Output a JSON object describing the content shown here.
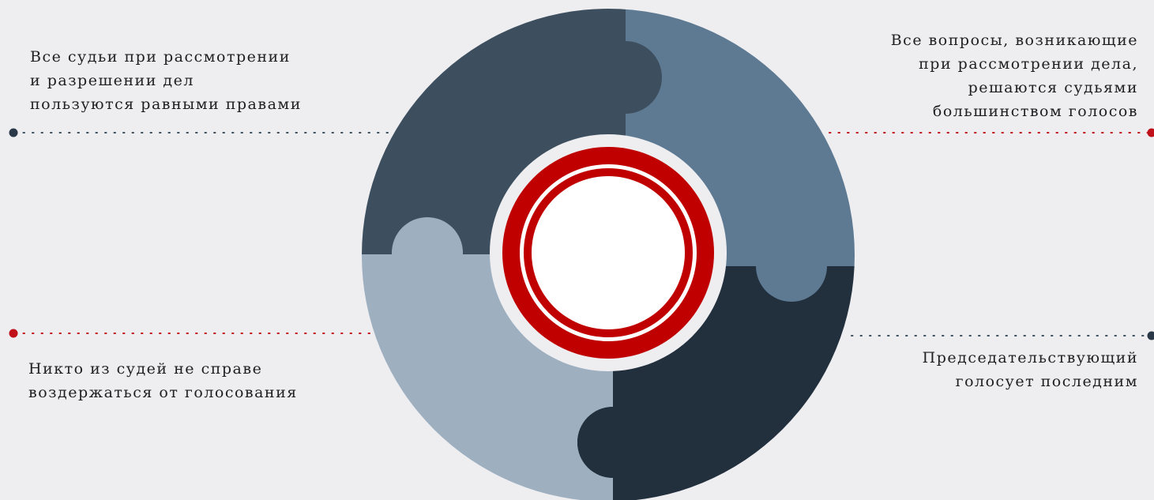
{
  "statements": {
    "top_left": "Все судьи при рассмотрении\nи разрешении дел\nпользуются равными правами",
    "top_right": "Все вопросы, возникающие\nпри рассмотрении дела,\nрешаются судьями\nбольшинством голосов",
    "bottom_left": "Никто из судей не справе\nвоздержаться от голосования",
    "bottom_right": "Председательствующий\nголосует последним"
  },
  "colors": {
    "background": "#eeeef1",
    "piece_top_left": "#3d4f5e",
    "piece_top_right": "#5e7a93",
    "piece_bottom_left": "#9eafc0",
    "piece_bottom_right": "#222f3d",
    "ring_red": "#c00000",
    "dot_dark": "#2a3847",
    "dot_red": "#c0101a"
  }
}
